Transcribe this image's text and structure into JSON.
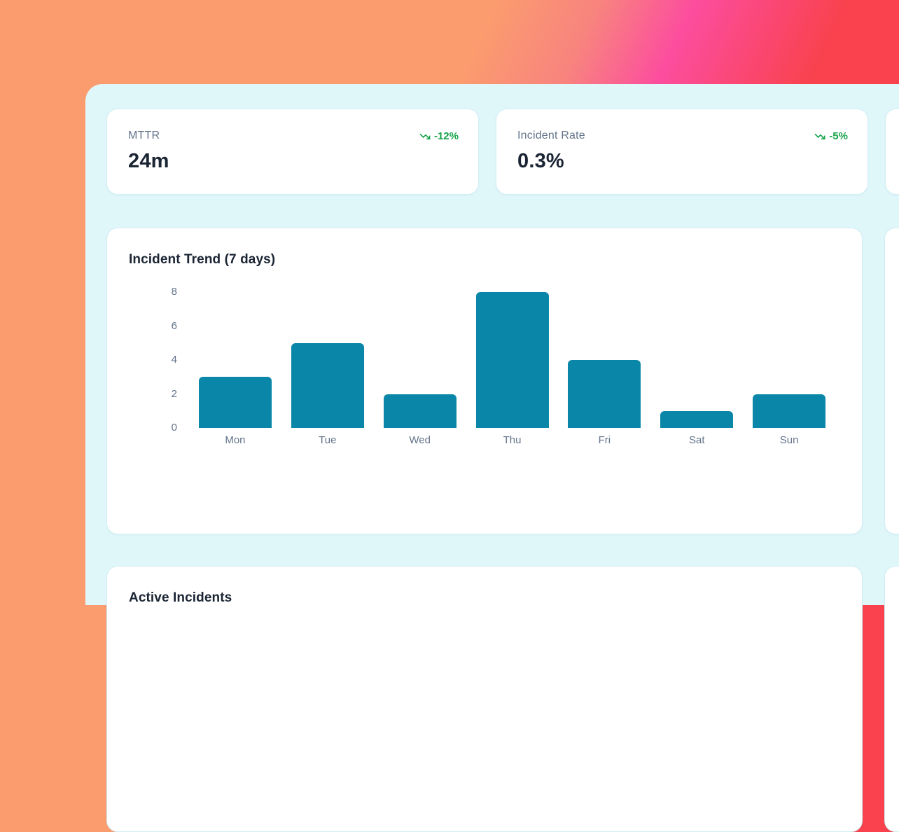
{
  "theme": {
    "background_orange": "#fb9c6e",
    "background_pink": "#fc4d9e",
    "background_red": "#f9424d",
    "panel_background": "#e0f7fa",
    "card_background": "#ffffff",
    "positive_green": "#16a34a",
    "text_primary": "#1a2433",
    "text_secondary": "#64748b"
  },
  "stat_cards": [
    {
      "label": "MTTR",
      "value": "24m",
      "delta": "-12%",
      "trend": "down",
      "trend_icon": "trending-down-icon"
    },
    {
      "label": "Incident Rate",
      "value": "0.3%",
      "delta": "-5%",
      "trend": "down",
      "trend_icon": "trending-down-icon"
    }
  ],
  "chart_card": {
    "title": "Incident Trend (7 days)"
  },
  "chart_data": {
    "type": "bar",
    "title": "Incident Trend (7 days)",
    "categories": [
      "Mon",
      "Tue",
      "Wed",
      "Thu",
      "Fri",
      "Sat",
      "Sun"
    ],
    "values": [
      3,
      5,
      2,
      8,
      4,
      1,
      2
    ],
    "xlabel": "",
    "ylabel": "",
    "ylim": [
      0,
      8
    ],
    "yticks": [
      0,
      2,
      4,
      6,
      8
    ],
    "grid": false,
    "legend": false,
    "bar_color": "#0a87a8"
  },
  "active_incidents_card": {
    "title": "Active Incidents"
  }
}
